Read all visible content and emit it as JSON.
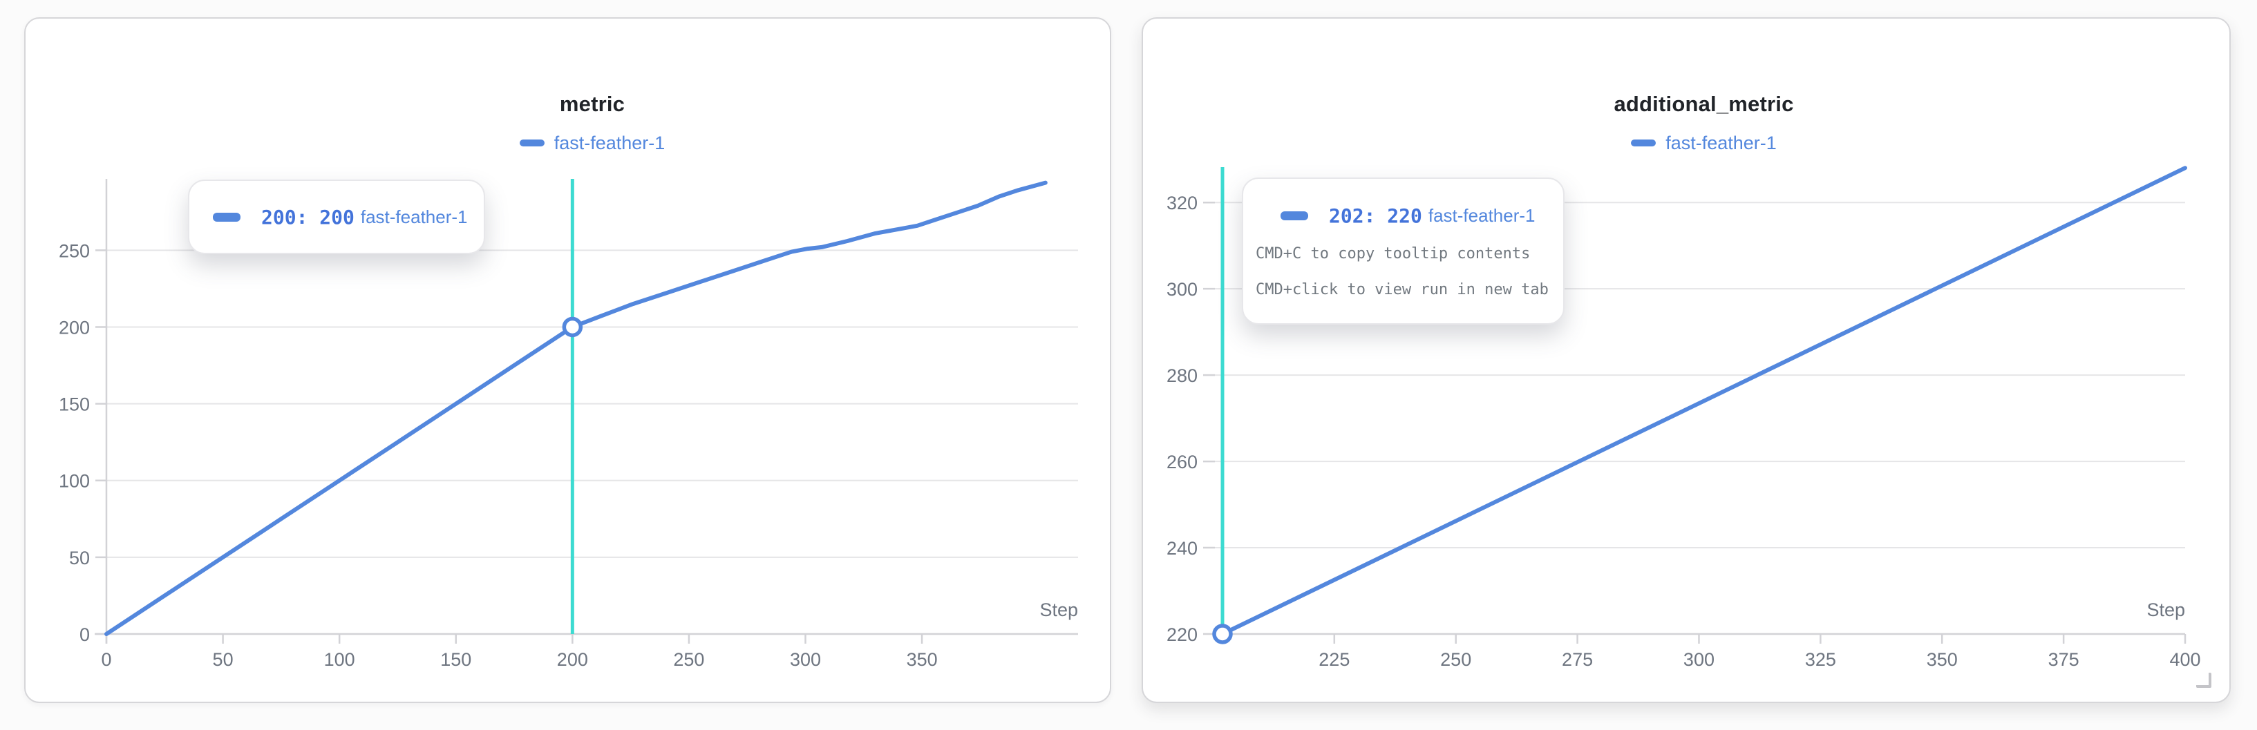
{
  "page": {
    "background": "#fbfbfb"
  },
  "colors": {
    "run": "#5387dd",
    "tooltip_value": "#4373da",
    "crosshair": "#3ddbd1",
    "title": "#212429",
    "tick_text": "#6e7580",
    "gridline": "#e5e5e7",
    "axis_line": "#d2d2d6",
    "hint_text": "#71787f"
  },
  "panels": [
    {
      "title": "metric",
      "legend_label": "fast-feather-1",
      "step_label": "Step",
      "tooltip": {
        "value_text": "200: 200",
        "run": "fast-feather-1"
      }
    },
    {
      "title": "additional_metric",
      "legend_label": "fast-feather-1",
      "step_label": "Step",
      "tooltip": {
        "value_text": "202: 220",
        "run": "fast-feather-1",
        "hints": [
          "CMD+C to copy tooltip contents",
          "CMD+click to view run in new tab"
        ]
      }
    }
  ],
  "chart_data": [
    {
      "type": "line",
      "title": "metric",
      "xlabel": "Step",
      "series": [
        {
          "name": "fast-feather-1",
          "x": [
            0,
            25,
            50,
            75,
            100,
            125,
            150,
            175,
            200,
            212,
            226,
            240,
            254,
            268,
            282,
            294,
            301,
            307,
            318,
            330,
            341,
            348,
            356,
            366,
            374,
            383,
            391,
            403
          ],
          "y": [
            0,
            25,
            50,
            75,
            100,
            125,
            150,
            175,
            200,
            207,
            215,
            222,
            229,
            236,
            243,
            249,
            251,
            252,
            256,
            261,
            264,
            266,
            270,
            275,
            279,
            285,
            289,
            294
          ]
        }
      ],
      "x_ticks": [
        0,
        50,
        100,
        150,
        200,
        250,
        300,
        350
      ],
      "y_ticks": [
        0,
        50,
        100,
        150,
        200,
        250
      ],
      "x_ticks_unlabeled": [],
      "xlim": [
        0,
        417
      ],
      "ylim": [
        0,
        296.5
      ],
      "grid": true,
      "legend_position": "top",
      "crosshair_x": 200,
      "highlighted_point": {
        "x": 200,
        "y": 200
      }
    },
    {
      "type": "line",
      "title": "additional_metric",
      "xlabel": "Step",
      "series": [
        {
          "name": "fast-feather-1",
          "x": [
            202,
            400
          ],
          "y": [
            220,
            328
          ]
        }
      ],
      "x_ticks": [
        225,
        250,
        275,
        300,
        325,
        350,
        375,
        400
      ],
      "y_ticks": [
        220,
        240,
        260,
        280,
        300,
        320
      ],
      "x_ticks_unlabeled": [
        202
      ],
      "xlim": [
        202,
        400
      ],
      "ylim": [
        220,
        328.2
      ],
      "grid": true,
      "legend_position": "top",
      "crosshair_x": 202,
      "highlighted_point": {
        "x": 202,
        "y": 220
      }
    }
  ]
}
